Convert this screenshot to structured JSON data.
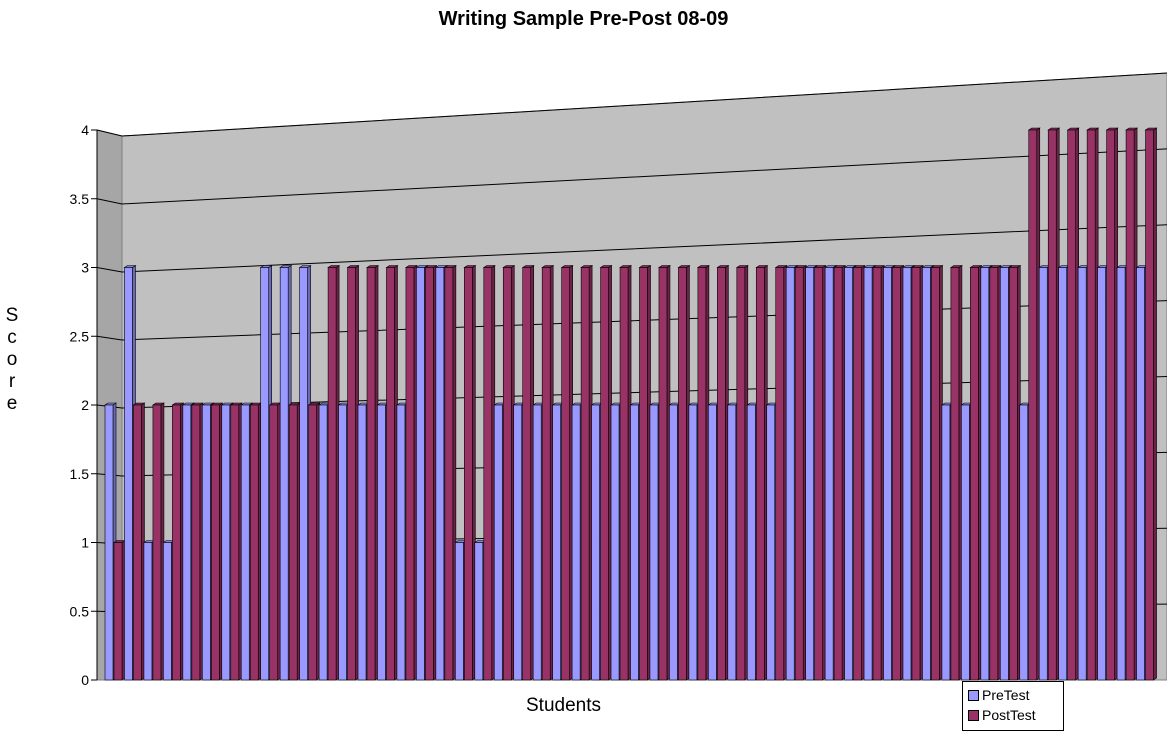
{
  "chart_data": {
    "type": "bar",
    "title": "Writing Sample Pre-Post 08-09",
    "xlabel": "Students",
    "ylabel": "Score",
    "ylim": [
      0,
      4
    ],
    "yticks": [
      "0",
      "0.5",
      "1",
      "1.5",
      "2",
      "2.5",
      "3",
      "3.5",
      "4"
    ],
    "grid": true,
    "legend_position": "bottom-right",
    "series": [
      {
        "name": "PreTest",
        "color": "#9999ff",
        "values": [
          2,
          3,
          1,
          1,
          2,
          2,
          2,
          2,
          3,
          3,
          3,
          2,
          2,
          2,
          2,
          2,
          3,
          3,
          1,
          1,
          2,
          2,
          2,
          2,
          2,
          2,
          2,
          2,
          2,
          2,
          2,
          2,
          2,
          2,
          2,
          3,
          3,
          3,
          3,
          3,
          3,
          3,
          3,
          2,
          2,
          3,
          3,
          2,
          3,
          3,
          3,
          3,
          3,
          3
        ]
      },
      {
        "name": "PostTest",
        "color": "#993366",
        "values": [
          1,
          2,
          2,
          2,
          2,
          2,
          2,
          2,
          2,
          2,
          2,
          3,
          3,
          3,
          3,
          3,
          3,
          3,
          3,
          3,
          3,
          3,
          3,
          3,
          3,
          3,
          3,
          3,
          3,
          3,
          3,
          3,
          3,
          3,
          3,
          3,
          3,
          3,
          3,
          3,
          3,
          3,
          3,
          3,
          3,
          3,
          3,
          4,
          4,
          4,
          4,
          4,
          4,
          4
        ]
      }
    ]
  }
}
